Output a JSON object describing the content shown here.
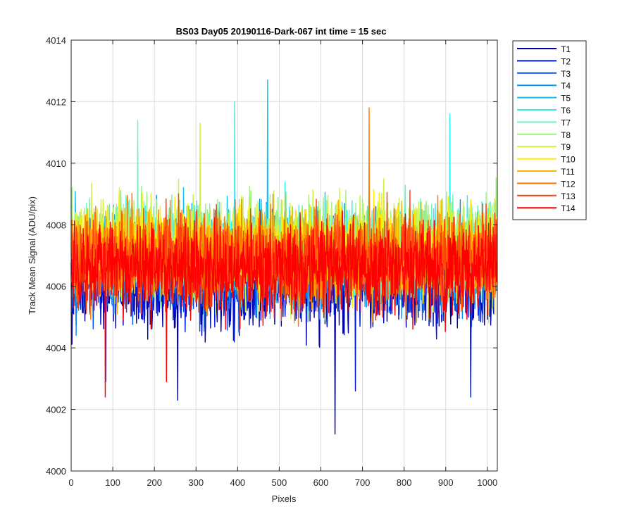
{
  "chart_data": {
    "type": "line",
    "title": "BS03 Day05 20190116-Dark-067 int time = 15 sec",
    "xlabel": "Pixels",
    "ylabel": "Track Mean Signal (ADU/pix)",
    "xlim": [
      0,
      1024
    ],
    "ylim": [
      4000,
      4014
    ],
    "xticks": [
      "0",
      "100",
      "200",
      "300",
      "400",
      "500",
      "600",
      "700",
      "800",
      "900",
      "1000"
    ],
    "yticks": [
      "4000",
      "4002",
      "4004",
      "4006",
      "4008",
      "4010",
      "4012",
      "4014"
    ],
    "grid": true,
    "legend_position": "outside-top-right",
    "n_points": 1024,
    "series": [
      {
        "name": "T1",
        "color": "#0000aa",
        "mean": 4006.1,
        "spread": 2.1,
        "peaks": [
          [
            634,
            4001.2
          ],
          [
            83,
            4002.9
          ],
          [
            256,
            4002.3
          ]
        ]
      },
      {
        "name": "T2",
        "color": "#0018dd",
        "mean": 4006.3,
        "spread": 2.0,
        "peaks": [
          [
            683,
            4002.6
          ],
          [
            960,
            4002.4
          ]
        ]
      },
      {
        "name": "T3",
        "color": "#0050ee",
        "mean": 4006.5,
        "spread": 1.9,
        "peaks": []
      },
      {
        "name": "T4",
        "color": "#0090ee",
        "mean": 4006.8,
        "spread": 2.0,
        "peaks": []
      },
      {
        "name": "T5",
        "color": "#10c0f0",
        "mean": 4007.0,
        "spread": 2.0,
        "peaks": [
          [
            472,
            4012.7
          ]
        ]
      },
      {
        "name": "T6",
        "color": "#30eeee",
        "mean": 4007.2,
        "spread": 2.0,
        "peaks": [
          [
            393,
            4012.0
          ],
          [
            910,
            4011.6
          ]
        ]
      },
      {
        "name": "T7",
        "color": "#70f0c0",
        "mean": 4007.3,
        "spread": 2.0,
        "peaks": [
          [
            160,
            4011.4
          ]
        ]
      },
      {
        "name": "T8",
        "color": "#a0f080",
        "mean": 4007.3,
        "spread": 2.0,
        "peaks": []
      },
      {
        "name": "T9",
        "color": "#d0f040",
        "mean": 4007.2,
        "spread": 2.0,
        "peaks": [
          [
            310,
            4011.3
          ]
        ]
      },
      {
        "name": "T10",
        "color": "#ffee00",
        "mean": 4007.1,
        "spread": 2.0,
        "peaks": []
      },
      {
        "name": "T11",
        "color": "#ffb000",
        "mean": 4007.0,
        "spread": 2.0,
        "peaks": []
      },
      {
        "name": "T12",
        "color": "#ff7800",
        "mean": 4006.9,
        "spread": 2.0,
        "peaks": [
          [
            716,
            4011.8
          ]
        ]
      },
      {
        "name": "T13",
        "color": "#ff4010",
        "mean": 4006.8,
        "spread": 2.0,
        "peaks": []
      },
      {
        "name": "T14",
        "color": "#ff0000",
        "mean": 4006.6,
        "spread": 2.0,
        "peaks": [
          [
            82,
            4002.4
          ],
          [
            229,
            4002.9
          ]
        ]
      }
    ]
  }
}
